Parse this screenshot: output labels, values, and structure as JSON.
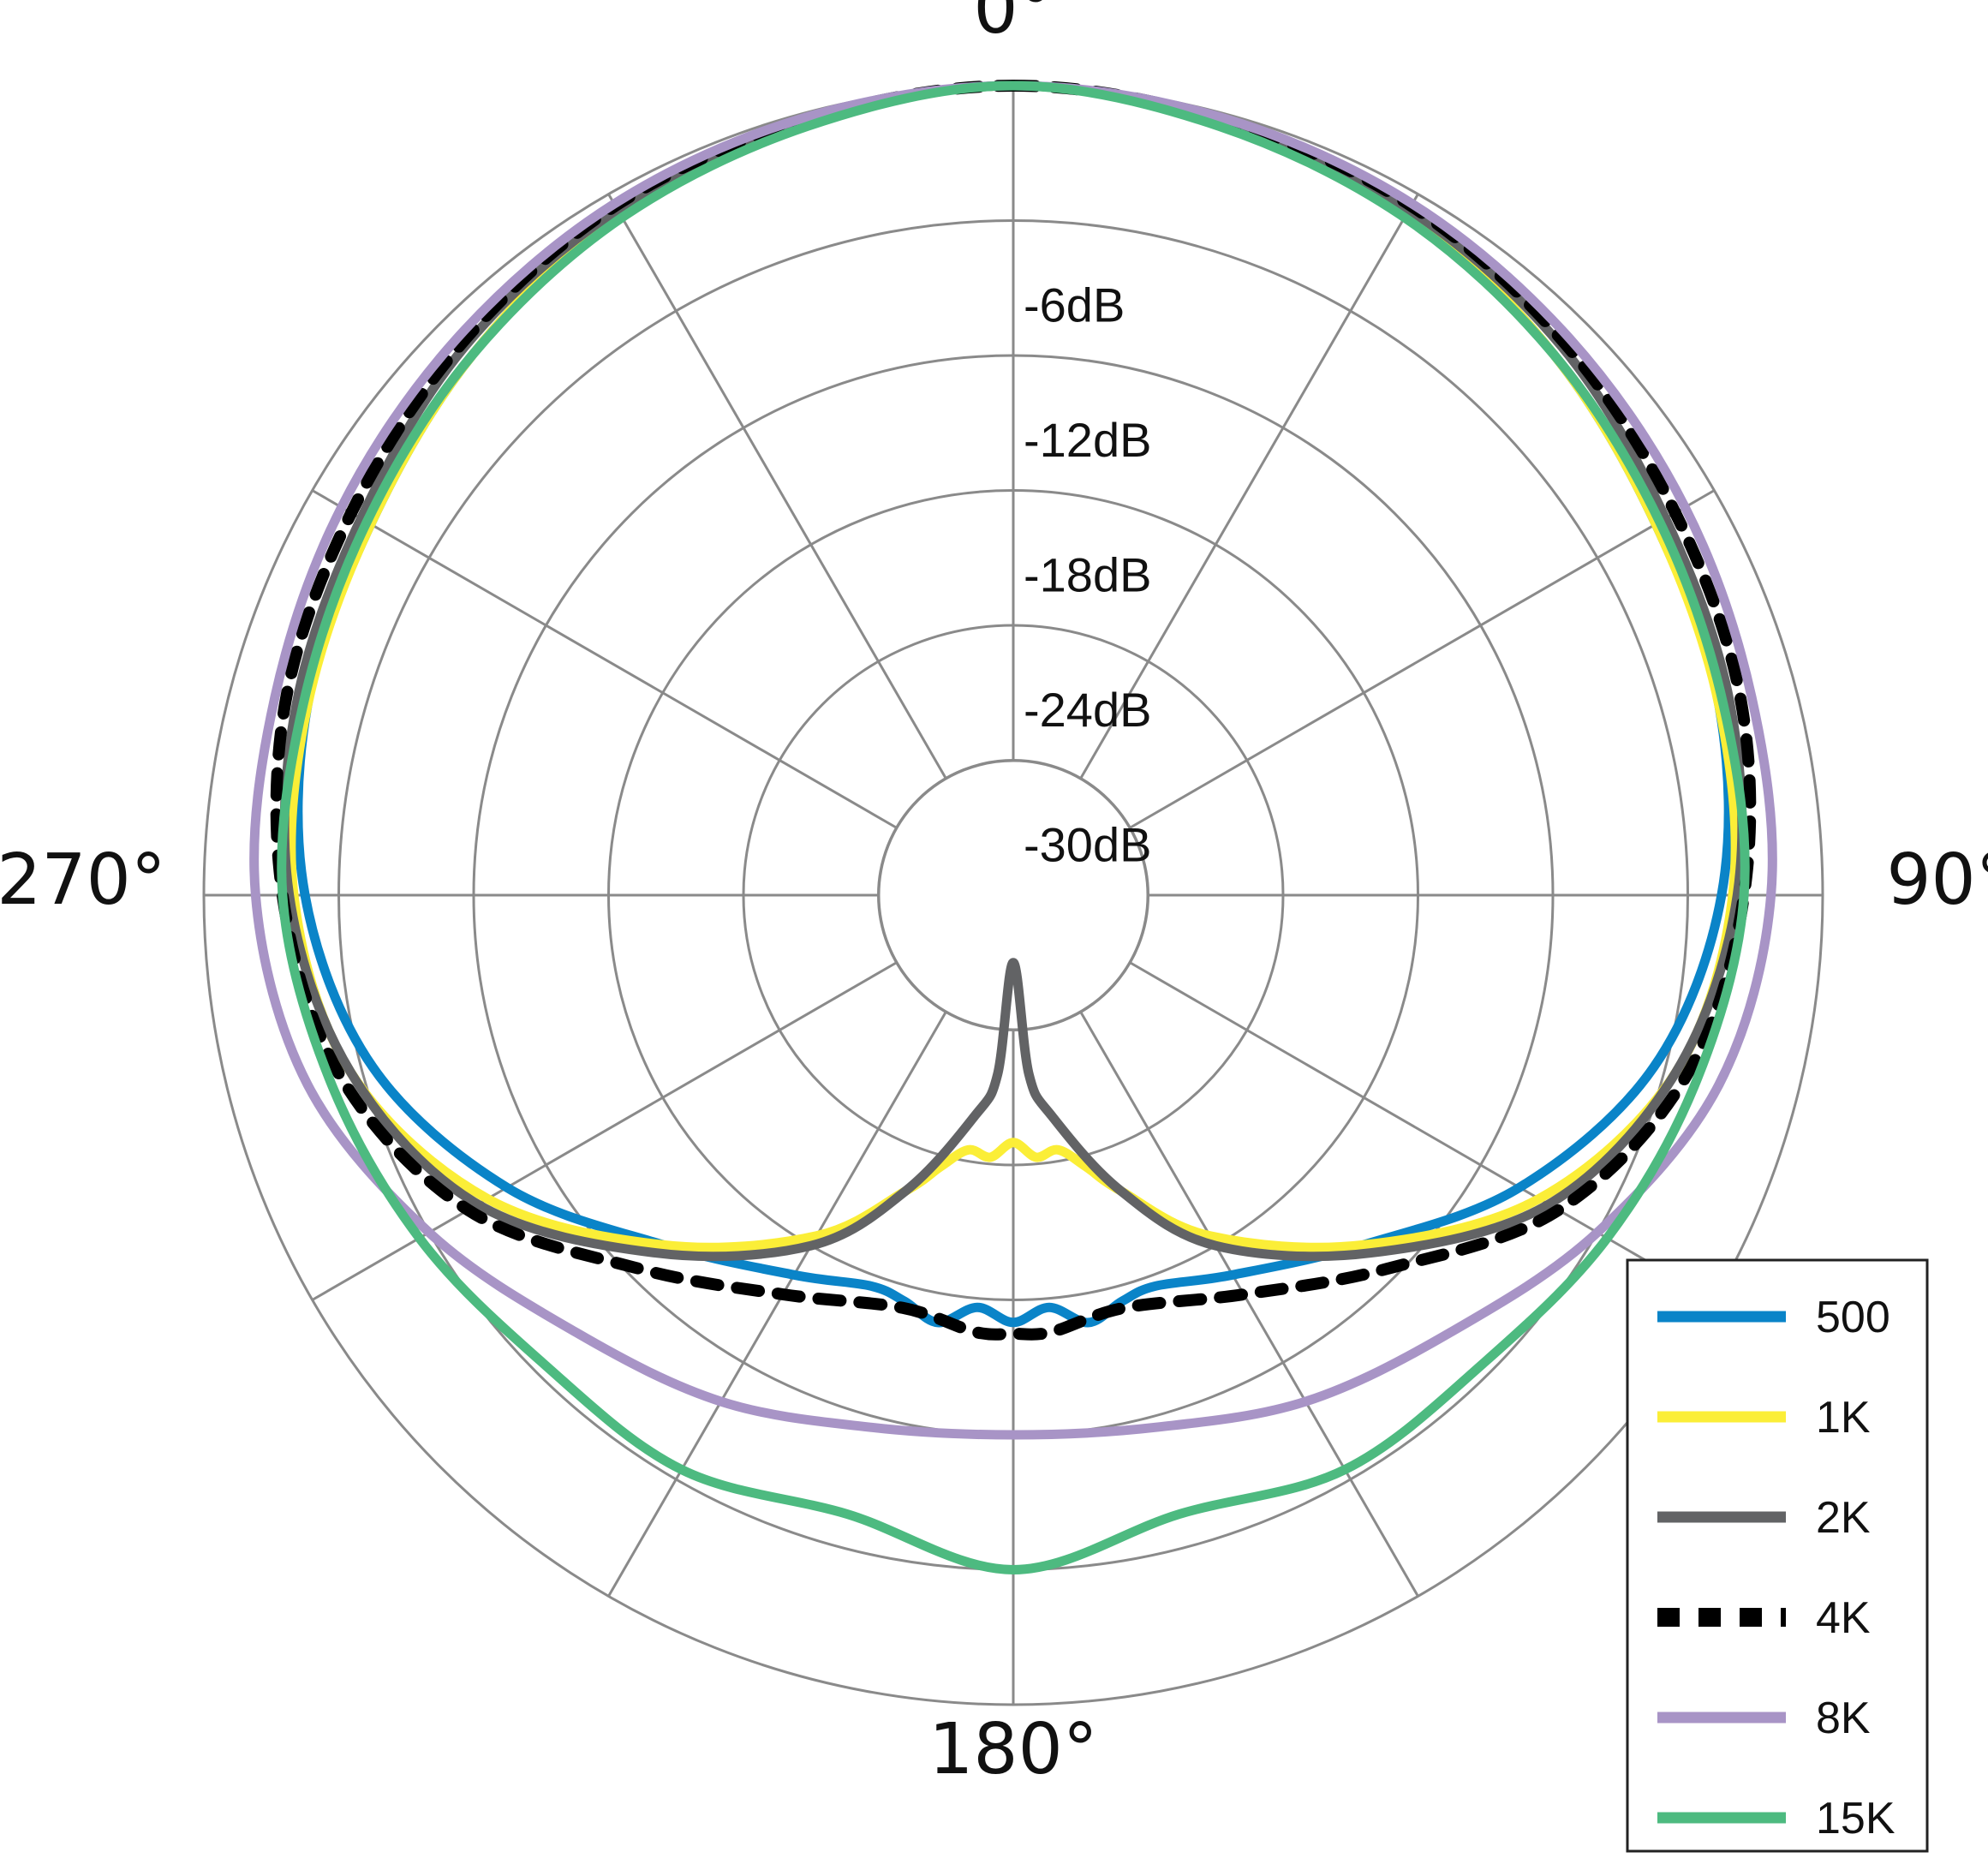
{
  "chart_data": {
    "type": "polar",
    "title": "",
    "angle_labels": [
      {
        "deg": 0,
        "text": "0°"
      },
      {
        "deg": 90,
        "text": "90°"
      },
      {
        "deg": 180,
        "text": "180°"
      },
      {
        "deg": 270,
        "text": "270°"
      }
    ],
    "spoke_angles": [
      0,
      30,
      60,
      90,
      120,
      150,
      180,
      210,
      240,
      270,
      300,
      330
    ],
    "rings_db": [
      0,
      -6,
      -12,
      -18,
      -24,
      -30,
      -36
    ],
    "ring_labels": [
      {
        "db": -6,
        "text": "-6dB"
      },
      {
        "db": -12,
        "text": "-12dB"
      },
      {
        "db": -18,
        "text": "-18dB"
      },
      {
        "db": -24,
        "text": "-24dB"
      },
      {
        "db": -30,
        "text": "-30dB"
      }
    ],
    "r_range_db": [
      -36,
      0
    ],
    "grid": true,
    "legend_position": "bottom-right",
    "series": [
      {
        "name": "500",
        "color": "#0a84c8",
        "dash": "solid",
        "angles": [
          0,
          15,
          30,
          45,
          60,
          75,
          90,
          105,
          120,
          135,
          150,
          160,
          165,
          170,
          175,
          180,
          185,
          190,
          195,
          200,
          210,
          225,
          240,
          255,
          270,
          285,
          300,
          315,
          330,
          345,
          360
        ],
        "db": [
          0,
          -0.5,
          -1,
          -2,
          -3,
          -3.5,
          -4.5,
          -6.5,
          -10,
          -14,
          -16.5,
          -17.5,
          -17.3,
          -16.7,
          -17.6,
          -17.0,
          -17.6,
          -16.7,
          -17.3,
          -17.5,
          -16.5,
          -14,
          -10,
          -6.5,
          -4.5,
          -3.5,
          -3,
          -2,
          -1,
          -0.5,
          0
        ]
      },
      {
        "name": "1K",
        "color": "#fbee37",
        "dash": "solid",
        "angles": [
          0,
          15,
          30,
          45,
          60,
          75,
          90,
          105,
          120,
          135,
          150,
          160,
          165,
          170,
          175,
          180,
          185,
          190,
          195,
          200,
          210,
          225,
          240,
          255,
          270,
          285,
          300,
          315,
          330,
          345,
          360
        ],
        "db": [
          0,
          -0.5,
          -1,
          -2,
          -3,
          -3.5,
          -4,
          -5.5,
          -9,
          -14,
          -18.5,
          -22,
          -23.5,
          -24.5,
          -24.3,
          -25,
          -24.3,
          -24.5,
          -23.5,
          -22,
          -18.5,
          -14,
          -9,
          -5.5,
          -4,
          -3.5,
          -3,
          -2,
          -1,
          -0.5,
          0
        ]
      },
      {
        "name": "2K",
        "color": "#626365",
        "dash": "solid",
        "angles": [
          0,
          15,
          30,
          45,
          60,
          75,
          90,
          105,
          120,
          135,
          150,
          160,
          170,
          175,
          180,
          185,
          190,
          200,
          210,
          225,
          240,
          255,
          270,
          285,
          300,
          315,
          330,
          345,
          360
        ],
        "db": [
          0,
          -0.4,
          -0.8,
          -1.5,
          -2.5,
          -3,
          -3.8,
          -5.5,
          -8.5,
          -13.5,
          -18,
          -22,
          -26,
          -28,
          -33,
          -28,
          -26,
          -22,
          -18,
          -13.5,
          -8.5,
          -5.5,
          -3.8,
          -3,
          -2.5,
          -1.5,
          -0.8,
          -0.4,
          0
        ]
      },
      {
        "name": "4K",
        "color": "#000000",
        "dash": "dotted",
        "angles": [
          0,
          15,
          30,
          45,
          60,
          75,
          90,
          105,
          120,
          135,
          150,
          165,
          175,
          180,
          185,
          195,
          210,
          225,
          240,
          255,
          270,
          285,
          300,
          315,
          330,
          345,
          360
        ],
        "db": [
          0,
          -0.3,
          -0.6,
          -1.3,
          -2,
          -2.5,
          -3.5,
          -5,
          -8,
          -12.5,
          -15.5,
          -17,
          -16.5,
          -16.5,
          -16.5,
          -17,
          -15.5,
          -12.5,
          -8,
          -5,
          -3.5,
          -2.5,
          -2,
          -1.3,
          -0.6,
          -0.3,
          0
        ]
      },
      {
        "name": "8K",
        "color": "#a894c6",
        "dash": "solid",
        "angles": [
          0,
          15,
          30,
          45,
          60,
          75,
          90,
          105,
          120,
          135,
          150,
          165,
          180,
          195,
          210,
          225,
          240,
          255,
          270,
          285,
          300,
          315,
          330,
          345,
          360
        ],
        "db": [
          0,
          -0.2,
          -0.5,
          -1,
          -1.5,
          -2,
          -2.3,
          -3.5,
          -6,
          -8.5,
          -10,
          -11.5,
          -12,
          -11.5,
          -10,
          -8.5,
          -6,
          -3.5,
          -2.3,
          -2,
          -1.5,
          -1,
          -0.5,
          -0.2,
          0
        ]
      },
      {
        "name": "15K",
        "color": "#4dba80",
        "dash": "solid",
        "angles": [
          0,
          15,
          30,
          45,
          60,
          75,
          90,
          105,
          120,
          135,
          150,
          165,
          180,
          195,
          210,
          225,
          240,
          255,
          270,
          285,
          300,
          315,
          330,
          345,
          360
        ],
        "db": [
          0,
          -0.6,
          -1.2,
          -2,
          -2.8,
          -3.3,
          -3.5,
          -4.5,
          -5.5,
          -6.5,
          -6.5,
          -7.5,
          -6,
          -7.5,
          -6.5,
          -6.5,
          -5.5,
          -4.5,
          -3.5,
          -3.3,
          -2.8,
          -2,
          -1.2,
          -0.6,
          0
        ]
      }
    ]
  }
}
